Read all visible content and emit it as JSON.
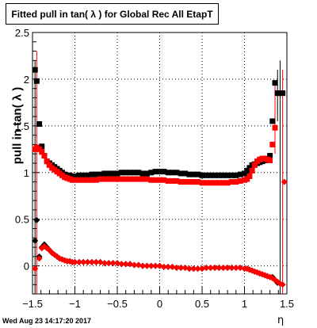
{
  "chart_data": {
    "type": "scatter",
    "title": "Fitted pull in tan( λ ) for Global Rec All EtapT",
    "xlabel": "η",
    "ylabel": "pull in tan( λ )",
    "xlim": [
      -1.5,
      1.5
    ],
    "ylim": [
      -0.3,
      2.5
    ],
    "x_ticks": [
      -1.5,
      -1,
      -0.5,
      0,
      0.5,
      1,
      1.5
    ],
    "x_tick_labels": [
      "−1.5",
      "−1",
      "−0.5",
      "0",
      "0.5",
      "1",
      "1.5"
    ],
    "y_ticks": [
      0,
      0.5,
      1,
      1.5,
      2,
      2.5
    ],
    "y_tick_labels": [
      "0",
      "0.5",
      "1",
      "1.5",
      "2",
      "2.5"
    ],
    "grid": true,
    "series": [
      {
        "name": "",
        "color": "#000000",
        "marker": "square",
        "x": [
          -1.47,
          -1.45,
          -1.42,
          -1.39,
          -1.36,
          -1.33,
          -1.3,
          -1.27,
          -1.24,
          -1.21,
          -1.18,
          -1.15,
          -1.12,
          -1.09,
          -1.06,
          -1.03,
          -1.0,
          -0.95,
          -0.9,
          -0.85,
          -0.8,
          -0.75,
          -0.7,
          -0.65,
          -0.6,
          -0.55,
          -0.5,
          -0.45,
          -0.4,
          -0.35,
          -0.3,
          -0.25,
          -0.2,
          -0.15,
          -0.1,
          -0.05,
          0.0,
          0.05,
          0.1,
          0.15,
          0.2,
          0.25,
          0.3,
          0.35,
          0.4,
          0.45,
          0.5,
          0.55,
          0.6,
          0.65,
          0.7,
          0.75,
          0.8,
          0.85,
          0.9,
          0.95,
          1.0,
          1.03,
          1.06,
          1.09,
          1.12,
          1.15,
          1.18,
          1.21,
          1.24,
          1.27,
          1.3,
          1.33,
          1.36,
          1.39,
          1.42,
          1.45
        ],
        "y": [
          2.1,
          1.98,
          1.52,
          1.28,
          1.18,
          1.12,
          1.1,
          1.08,
          1.06,
          1.04,
          1.02,
          1.0,
          0.98,
          0.97,
          0.97,
          0.96,
          0.96,
          0.97,
          0.97,
          0.97,
          0.98,
          0.98,
          0.98,
          0.99,
          0.99,
          0.99,
          0.99,
          1.0,
          1.0,
          1.0,
          1.0,
          1.0,
          0.99,
          0.99,
          1.0,
          1.01,
          1.01,
          1.01,
          1.0,
          1.0,
          1.0,
          0.99,
          0.99,
          0.98,
          0.98,
          0.98,
          0.97,
          0.97,
          0.97,
          0.97,
          0.97,
          0.97,
          0.97,
          0.97,
          0.97,
          0.98,
          0.99,
          1.02,
          1.05,
          1.08,
          1.09,
          1.1,
          1.11,
          1.12,
          1.13,
          1.15,
          1.18,
          1.55,
          1.96,
          1.85,
          1.85,
          1.85
        ]
      },
      {
        "name": "",
        "color": "#ff0000",
        "marker": "square",
        "x": [
          -1.47,
          -1.45,
          -1.42,
          -1.39,
          -1.36,
          -1.33,
          -1.3,
          -1.27,
          -1.24,
          -1.21,
          -1.18,
          -1.15,
          -1.12,
          -1.09,
          -1.06,
          -1.03,
          -1.0,
          -0.95,
          -0.9,
          -0.85,
          -0.8,
          -0.75,
          -0.7,
          -0.65,
          -0.6,
          -0.55,
          -0.5,
          -0.45,
          -0.4,
          -0.35,
          -0.3,
          -0.25,
          -0.2,
          -0.15,
          -0.1,
          -0.05,
          0.0,
          0.05,
          0.1,
          0.15,
          0.2,
          0.25,
          0.3,
          0.35,
          0.4,
          0.45,
          0.5,
          0.55,
          0.6,
          0.65,
          0.7,
          0.75,
          0.8,
          0.85,
          0.9,
          0.95,
          1.0,
          1.03,
          1.06,
          1.09,
          1.12,
          1.15,
          1.18,
          1.21,
          1.24,
          1.27,
          1.3,
          1.33,
          1.36
        ],
        "y": [
          1.25,
          1.27,
          1.25,
          1.22,
          1.18,
          1.12,
          1.08,
          1.05,
          1.03,
          1.01,
          0.99,
          0.97,
          0.95,
          0.94,
          0.93,
          0.92,
          0.92,
          0.92,
          0.92,
          0.92,
          0.92,
          0.92,
          0.93,
          0.93,
          0.93,
          0.93,
          0.93,
          0.93,
          0.93,
          0.93,
          0.93,
          0.93,
          0.93,
          0.93,
          0.92,
          0.92,
          0.92,
          0.92,
          0.91,
          0.91,
          0.91,
          0.9,
          0.9,
          0.9,
          0.9,
          0.9,
          0.89,
          0.89,
          0.89,
          0.89,
          0.89,
          0.89,
          0.89,
          0.9,
          0.9,
          0.91,
          0.92,
          0.93,
          0.96,
          1.02,
          1.08,
          1.12,
          1.14,
          1.15,
          1.15,
          1.14,
          1.13,
          1.3,
          1.48
        ]
      },
      {
        "name": "",
        "color": "#000000",
        "marker": "diamond",
        "x": [
          -1.47,
          -1.45,
          -1.42,
          -1.39,
          -1.36,
          -1.33,
          -1.3,
          -1.27,
          -1.24,
          -1.21,
          -1.18,
          -1.15,
          -1.12,
          -1.09,
          -1.06,
          -1.03,
          -1.0,
          -0.95,
          -0.9,
          -0.85,
          -0.8,
          -0.75,
          -0.7,
          -0.65,
          -0.6,
          -0.55,
          -0.5,
          -0.45,
          -0.4,
          -0.35,
          -0.3,
          -0.25,
          -0.2,
          -0.15,
          -0.1,
          -0.05,
          0.0,
          0.05,
          0.1,
          0.15,
          0.2,
          0.25,
          0.3,
          0.35,
          0.4,
          0.45,
          0.5,
          0.55,
          0.6,
          0.65,
          0.7,
          0.75,
          0.8,
          0.85,
          0.9,
          0.95,
          1.0,
          1.03,
          1.06,
          1.09,
          1.12,
          1.15,
          1.18,
          1.21,
          1.24,
          1.27,
          1.3,
          1.33,
          1.36,
          1.39
        ],
        "y": [
          0.27,
          0.49,
          0.1,
          0.2,
          0.23,
          0.2,
          0.17,
          0.14,
          0.12,
          0.1,
          0.08,
          0.07,
          0.06,
          0.05,
          0.05,
          0.04,
          0.04,
          0.04,
          0.04,
          0.04,
          0.04,
          0.04,
          0.04,
          0.03,
          0.03,
          0.03,
          0.03,
          0.02,
          0.02,
          0.02,
          0.01,
          0.01,
          0.0,
          0.0,
          0.0,
          0.0,
          0.0,
          -0.01,
          -0.01,
          -0.01,
          -0.02,
          -0.02,
          -0.02,
          -0.03,
          -0.03,
          -0.03,
          -0.03,
          -0.02,
          -0.02,
          -0.02,
          -0.02,
          -0.02,
          -0.02,
          -0.02,
          -0.02,
          -0.02,
          -0.03,
          -0.03,
          -0.04,
          -0.05,
          -0.06,
          -0.07,
          -0.08,
          -0.09,
          -0.1,
          -0.11,
          -0.12,
          -0.12,
          -0.15,
          -0.18
        ]
      },
      {
        "name": "",
        "color": "#ff0000",
        "marker": "diamond",
        "x": [
          -1.47,
          -1.42,
          -1.39,
          -1.36,
          -1.33,
          -1.3,
          -1.27,
          -1.24,
          -1.21,
          -1.18,
          -1.15,
          -1.12,
          -1.09,
          -1.06,
          -1.03,
          -1.0,
          -0.95,
          -0.9,
          -0.85,
          -0.8,
          -0.75,
          -0.7,
          -0.65,
          -0.6,
          -0.55,
          -0.5,
          -0.45,
          -0.4,
          -0.35,
          -0.3,
          -0.25,
          -0.2,
          -0.15,
          -0.1,
          -0.05,
          0.0,
          0.05,
          0.1,
          0.15,
          0.2,
          0.25,
          0.3,
          0.35,
          0.4,
          0.45,
          0.5,
          0.55,
          0.6,
          0.65,
          0.7,
          0.75,
          0.8,
          0.85,
          0.9,
          0.95,
          1.0,
          1.03,
          1.06,
          1.09,
          1.12,
          1.15,
          1.18,
          1.21,
          1.24,
          1.27,
          1.3,
          1.33,
          1.36,
          1.39,
          1.42,
          1.45
        ],
        "y": [
          -0.03,
          0.08,
          0.19,
          0.21,
          0.19,
          0.17,
          0.14,
          0.12,
          0.1,
          0.08,
          0.07,
          0.06,
          0.05,
          0.05,
          0.04,
          0.04,
          0.04,
          0.04,
          0.04,
          0.04,
          0.04,
          0.04,
          0.03,
          0.03,
          0.03,
          0.03,
          0.02,
          0.02,
          0.02,
          0.01,
          0.01,
          0.0,
          0.0,
          0.0,
          0.0,
          0.0,
          -0.01,
          -0.01,
          -0.01,
          -0.02,
          -0.02,
          -0.02,
          -0.03,
          -0.03,
          -0.03,
          -0.03,
          -0.02,
          -0.02,
          -0.02,
          -0.02,
          -0.02,
          -0.02,
          -0.02,
          -0.02,
          -0.02,
          -0.03,
          -0.03,
          -0.04,
          -0.05,
          -0.06,
          -0.07,
          -0.08,
          -0.09,
          -0.1,
          -0.11,
          -0.12,
          -0.13,
          -0.15,
          -0.17,
          -0.19,
          -0.2
        ]
      }
    ],
    "edge_errors": [
      {
        "x": -1.47,
        "ylo": -0.3,
        "yhi": 2.2,
        "color": "#000000"
      },
      {
        "x": -1.45,
        "ylo": -0.3,
        "yhi": 2.3,
        "color": "#ff0000"
      },
      {
        "x": 1.42,
        "ylo": -0.3,
        "yhi": 2.2,
        "color": "#000000"
      },
      {
        "x": 1.45,
        "ylo": -0.3,
        "yhi": 2.1,
        "color": "#ff0000"
      },
      {
        "x": 1.36,
        "ylo": 1.2,
        "yhi": 1.95,
        "color": "#ff0000"
      },
      {
        "x": 1.39,
        "ylo": 1.55,
        "yhi": 2.1,
        "color": "#000000"
      }
    ],
    "extra_points": [
      {
        "x": 1.47,
        "y": 0.9,
        "color": "#ff0000",
        "marker": "diamond"
      }
    ]
  },
  "footer": {
    "timestamp": "Wed Aug 23 14:17:20 2017"
  }
}
